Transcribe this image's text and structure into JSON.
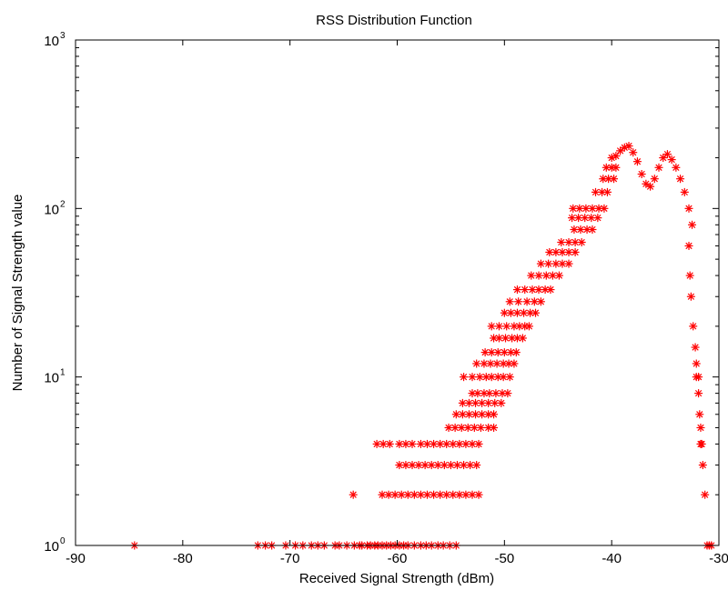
{
  "chart_data": {
    "type": "scatter",
    "title": "RSS Distribution Function",
    "xlabel": "Received Signal Strength (dBm)",
    "ylabel": "Number of Signal Strength value",
    "xlim": [
      -90,
      -30
    ],
    "ylim": [
      1,
      1000
    ],
    "yscale": "log",
    "grid": false,
    "marker": "asterisk",
    "marker_color": "#ff0000",
    "x_ticks": [
      -90,
      -80,
      -70,
      -60,
      -50,
      -40,
      -30
    ],
    "x_tick_labels": [
      "-90",
      "-80",
      "-70",
      "-60",
      "-50",
      "-40",
      "-30"
    ],
    "y_ticks": [
      1,
      10,
      100,
      1000
    ],
    "y_tick_labels": [
      {
        "base": "10",
        "exp": "0"
      },
      {
        "base": "10",
        "exp": "1"
      },
      {
        "base": "10",
        "exp": "2"
      },
      {
        "base": "10",
        "exp": "3"
      }
    ],
    "series": [
      {
        "points": [
          [
            -84.5,
            1
          ],
          [
            -73,
            1
          ],
          [
            -72.3,
            1
          ],
          [
            -71.7,
            1
          ],
          [
            -70.4,
            1
          ],
          [
            -69.5,
            1
          ],
          [
            -68.8,
            1
          ],
          [
            -68,
            1
          ],
          [
            -67.4,
            1
          ],
          [
            -66.8,
            1
          ],
          [
            -65.8,
            1
          ],
          [
            -65.4,
            1
          ],
          [
            -64.7,
            1
          ],
          [
            -64,
            1
          ],
          [
            -63.5,
            1
          ],
          [
            -63.3,
            1
          ],
          [
            -62.8,
            1
          ],
          [
            -62.5,
            1
          ],
          [
            -62.1,
            1
          ],
          [
            -61.8,
            1
          ],
          [
            -61.4,
            1
          ],
          [
            -61,
            1
          ],
          [
            -60.6,
            1
          ],
          [
            -60.2,
            1
          ],
          [
            -59.8,
            1
          ],
          [
            -59.4,
            1
          ],
          [
            -59,
            1
          ],
          [
            -58.4,
            1
          ],
          [
            -57.8,
            1
          ],
          [
            -57.3,
            1
          ],
          [
            -56.8,
            1
          ],
          [
            -56.2,
            1
          ],
          [
            -55.7,
            1
          ],
          [
            -55.1,
            1
          ],
          [
            -54.5,
            1
          ],
          [
            -64.1,
            2
          ],
          [
            -61.4,
            2
          ],
          [
            -60.8,
            2
          ],
          [
            -60.2,
            2
          ],
          [
            -59.6,
            2
          ],
          [
            -59,
            2
          ],
          [
            -58.4,
            2
          ],
          [
            -57.8,
            2
          ],
          [
            -57.2,
            2
          ],
          [
            -56.6,
            2
          ],
          [
            -56,
            2
          ],
          [
            -55.4,
            2
          ],
          [
            -54.8,
            2
          ],
          [
            -54.2,
            2
          ],
          [
            -53.6,
            2
          ],
          [
            -53,
            2
          ],
          [
            -52.4,
            2
          ],
          [
            -59.8,
            3
          ],
          [
            -59.2,
            3
          ],
          [
            -58.6,
            3
          ],
          [
            -58,
            3
          ],
          [
            -57.4,
            3
          ],
          [
            -56.8,
            3
          ],
          [
            -56.2,
            3
          ],
          [
            -55.6,
            3
          ],
          [
            -55,
            3
          ],
          [
            -54.4,
            3
          ],
          [
            -53.8,
            3
          ],
          [
            -53.2,
            3
          ],
          [
            -52.6,
            3
          ],
          [
            -61.9,
            4
          ],
          [
            -61.3,
            4
          ],
          [
            -60.7,
            4
          ],
          [
            -59.8,
            4
          ],
          [
            -59.2,
            4
          ],
          [
            -58.6,
            4
          ],
          [
            -57.8,
            4
          ],
          [
            -57.2,
            4
          ],
          [
            -56.6,
            4
          ],
          [
            -56,
            4
          ],
          [
            -55.4,
            4
          ],
          [
            -54.8,
            4
          ],
          [
            -54.2,
            4
          ],
          [
            -53.6,
            4
          ],
          [
            -53,
            4
          ],
          [
            -52.4,
            4
          ],
          [
            -55.2,
            5
          ],
          [
            -54.6,
            5
          ],
          [
            -54,
            5
          ],
          [
            -53.4,
            5
          ],
          [
            -52.8,
            5
          ],
          [
            -52.2,
            5
          ],
          [
            -51.5,
            5
          ],
          [
            -51,
            5
          ],
          [
            -54.5,
            6
          ],
          [
            -53.9,
            6
          ],
          [
            -53.3,
            6
          ],
          [
            -52.7,
            6
          ],
          [
            -52.1,
            6
          ],
          [
            -51.5,
            6
          ],
          [
            -51,
            6
          ],
          [
            -53.9,
            7
          ],
          [
            -53.3,
            7
          ],
          [
            -52.7,
            7
          ],
          [
            -52.1,
            7
          ],
          [
            -51.5,
            7
          ],
          [
            -50.9,
            7
          ],
          [
            -50.3,
            7
          ],
          [
            -53,
            8
          ],
          [
            -52.5,
            8
          ],
          [
            -51.9,
            8
          ],
          [
            -51.4,
            8
          ],
          [
            -50.8,
            8
          ],
          [
            -50.2,
            8
          ],
          [
            -49.7,
            8
          ],
          [
            -53.8,
            10
          ],
          [
            -53,
            10
          ],
          [
            -52.3,
            10
          ],
          [
            -51.7,
            10
          ],
          [
            -51.2,
            10
          ],
          [
            -50.6,
            10
          ],
          [
            -50.1,
            10
          ],
          [
            -49.5,
            10
          ],
          [
            -52.6,
            12
          ],
          [
            -51.9,
            12
          ],
          [
            -51.3,
            12
          ],
          [
            -50.7,
            12
          ],
          [
            -50.1,
            12
          ],
          [
            -49.6,
            12
          ],
          [
            -49.1,
            12
          ],
          [
            -51.8,
            14
          ],
          [
            -51.2,
            14
          ],
          [
            -50.6,
            14
          ],
          [
            -50,
            14
          ],
          [
            -49.4,
            14
          ],
          [
            -48.9,
            14
          ],
          [
            -51,
            17
          ],
          [
            -50.5,
            17
          ],
          [
            -49.9,
            17
          ],
          [
            -49.3,
            17
          ],
          [
            -48.8,
            17
          ],
          [
            -48.3,
            17
          ],
          [
            -51.2,
            20
          ],
          [
            -50.5,
            20
          ],
          [
            -49.8,
            20
          ],
          [
            -49.1,
            20
          ],
          [
            -48.6,
            20
          ],
          [
            -48.1,
            20
          ],
          [
            -47.7,
            20
          ],
          [
            -50,
            24
          ],
          [
            -49.4,
            24
          ],
          [
            -48.8,
            24
          ],
          [
            -48.2,
            24
          ],
          [
            -47.6,
            24
          ],
          [
            -47.1,
            24
          ],
          [
            -49.5,
            28
          ],
          [
            -48.7,
            28
          ],
          [
            -47.9,
            28
          ],
          [
            -47.2,
            28
          ],
          [
            -46.6,
            28
          ],
          [
            -48.8,
            33
          ],
          [
            -48.1,
            33
          ],
          [
            -47.4,
            33
          ],
          [
            -46.8,
            33
          ],
          [
            -46.2,
            33
          ],
          [
            -45.7,
            33
          ],
          [
            -47.5,
            40
          ],
          [
            -46.8,
            40
          ],
          [
            -46.1,
            40
          ],
          [
            -45.5,
            40
          ],
          [
            -44.9,
            40
          ],
          [
            -46.6,
            47
          ],
          [
            -45.9,
            47
          ],
          [
            -45.2,
            47
          ],
          [
            -44.6,
            47
          ],
          [
            -44,
            47
          ],
          [
            -45.8,
            55
          ],
          [
            -45.2,
            55
          ],
          [
            -44.6,
            55
          ],
          [
            -44,
            55
          ],
          [
            -43.4,
            55
          ],
          [
            -44.7,
            63
          ],
          [
            -44,
            63
          ],
          [
            -43.4,
            63
          ],
          [
            -42.8,
            63
          ],
          [
            -43.5,
            75
          ],
          [
            -42.9,
            75
          ],
          [
            -42.3,
            75
          ],
          [
            -41.8,
            75
          ],
          [
            -43.7,
            88
          ],
          [
            -43.1,
            88
          ],
          [
            -42.5,
            88
          ],
          [
            -41.9,
            88
          ],
          [
            -41.3,
            88
          ],
          [
            -43.6,
            100
          ],
          [
            -43,
            100
          ],
          [
            -42.4,
            100
          ],
          [
            -41.8,
            100
          ],
          [
            -41.2,
            100
          ],
          [
            -40.7,
            100
          ],
          [
            -41.5,
            125
          ],
          [
            -40.9,
            125
          ],
          [
            -40.4,
            125
          ],
          [
            -40.8,
            150
          ],
          [
            -40.3,
            150
          ],
          [
            -39.8,
            150
          ],
          [
            -40.5,
            175
          ],
          [
            -40,
            175
          ],
          [
            -39.6,
            175
          ],
          [
            -40,
            200
          ],
          [
            -39.6,
            205
          ],
          [
            -39.2,
            220
          ],
          [
            -38.8,
            230
          ],
          [
            -38.4,
            235
          ],
          [
            -38,
            215
          ],
          [
            -37.6,
            190
          ],
          [
            -37.2,
            160
          ],
          [
            -36.8,
            140
          ],
          [
            -36.4,
            135
          ],
          [
            -36,
            150
          ],
          [
            -35.6,
            175
          ],
          [
            -35.2,
            200
          ],
          [
            -34.8,
            210
          ],
          [
            -34.4,
            195
          ],
          [
            -34,
            175
          ],
          [
            -33.6,
            150
          ],
          [
            -33.2,
            125
          ],
          [
            -32.8,
            100
          ],
          [
            -32.5,
            80
          ],
          [
            -32.8,
            60
          ],
          [
            -32.7,
            40
          ],
          [
            -32.6,
            30
          ],
          [
            -32.4,
            20
          ],
          [
            -32.2,
            15
          ],
          [
            -32.1,
            12
          ],
          [
            -31.9,
            10
          ],
          [
            -32.1,
            10
          ],
          [
            -31.9,
            8
          ],
          [
            -31.8,
            6
          ],
          [
            -31.7,
            5
          ],
          [
            -31.6,
            4
          ],
          [
            -31.7,
            4
          ],
          [
            -31.5,
            3
          ],
          [
            -31.3,
            2
          ],
          [
            -31.1,
            1
          ],
          [
            -30.9,
            1
          ],
          [
            -30.7,
            1
          ]
        ]
      }
    ]
  }
}
